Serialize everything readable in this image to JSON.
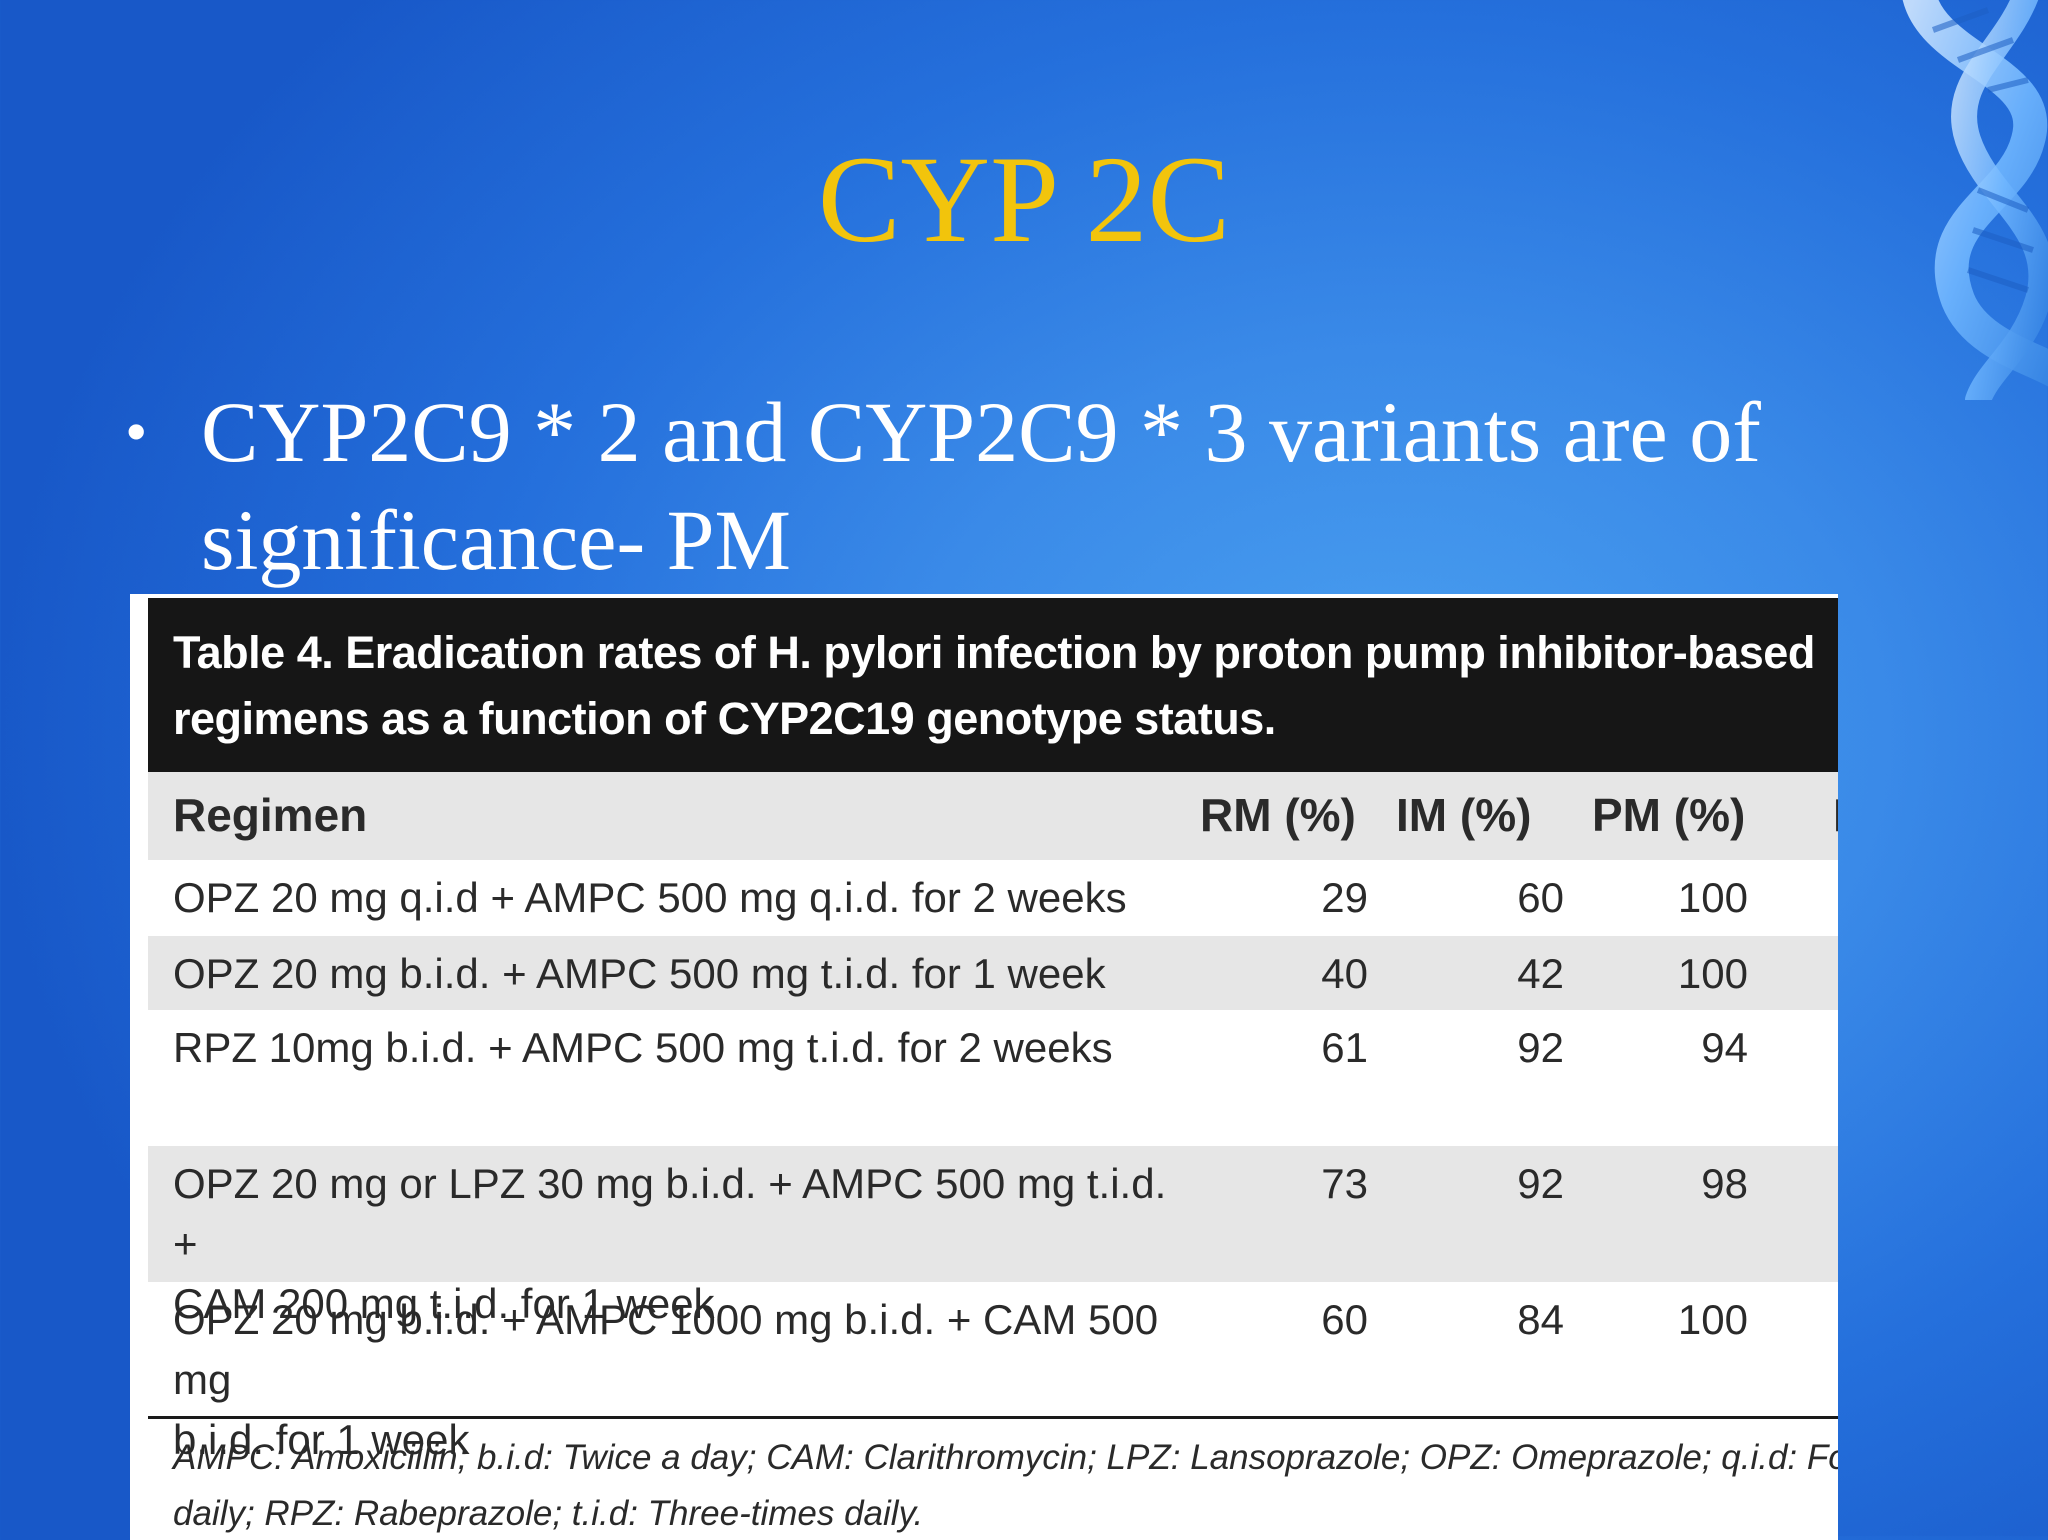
{
  "slide": {
    "title": "CYP 2C",
    "bullet": "CYP2C9 * 2 and CYP2C9 * 3 variants are of significance- PM",
    "bullet_marker": "•"
  },
  "table": {
    "caption_line1": "Table 4. Eradication rates of H. pylori infection by proton pump inhibitor-based",
    "caption_line2": "regimens as a function of CYP2C19 genotype status.",
    "columns": [
      "Regimen",
      "RM (%)",
      "IM (%)",
      "PM (%)",
      "F"
    ],
    "rows": [
      {
        "regimen": "OPZ 20 mg q.i.d + AMPC 500 mg q.i.d. for 2 weeks",
        "regimen_2": "",
        "rm": "29",
        "im": "60",
        "pm": "100"
      },
      {
        "regimen": "OPZ 20 mg b.i.d. + AMPC 500 mg t.i.d. for 1 week",
        "regimen_2": "",
        "rm": "40",
        "im": "42",
        "pm": "100"
      },
      {
        "regimen": "RPZ 10mg b.i.d. + AMPC 500 mg t.i.d. for 2 weeks",
        "regimen_2": "",
        "rm": "61",
        "im": "92",
        "pm": "94"
      },
      {
        "regimen": "OPZ 20 mg or LPZ 30 mg b.i.d. + AMPC 500 mg t.i.d. +",
        "regimen_2": "CAM 200 mg t.i.d. for 1 week",
        "rm": "73",
        "im": "92",
        "pm": "98"
      },
      {
        "regimen": "OPZ 20 mg b.i.d. + AMPC 1000 mg b.i.d. + CAM 500 mg",
        "regimen_2": "b.i.d. for 1 week",
        "rm": "60",
        "im": "84",
        "pm": "100"
      }
    ],
    "footnote_line1": "AMPC: Amoxicillin; b.i.d: Twice a day; CAM: Clarithromycin; LPZ: Lansoprazole; OPZ: Omeprazole; q.i.d: Four-ti",
    "footnote_line2": "daily; RPZ: Rabeprazole; t.i.d: Three-times daily."
  },
  "decoration": {
    "dna_icon": "dna-helix-icon"
  }
}
